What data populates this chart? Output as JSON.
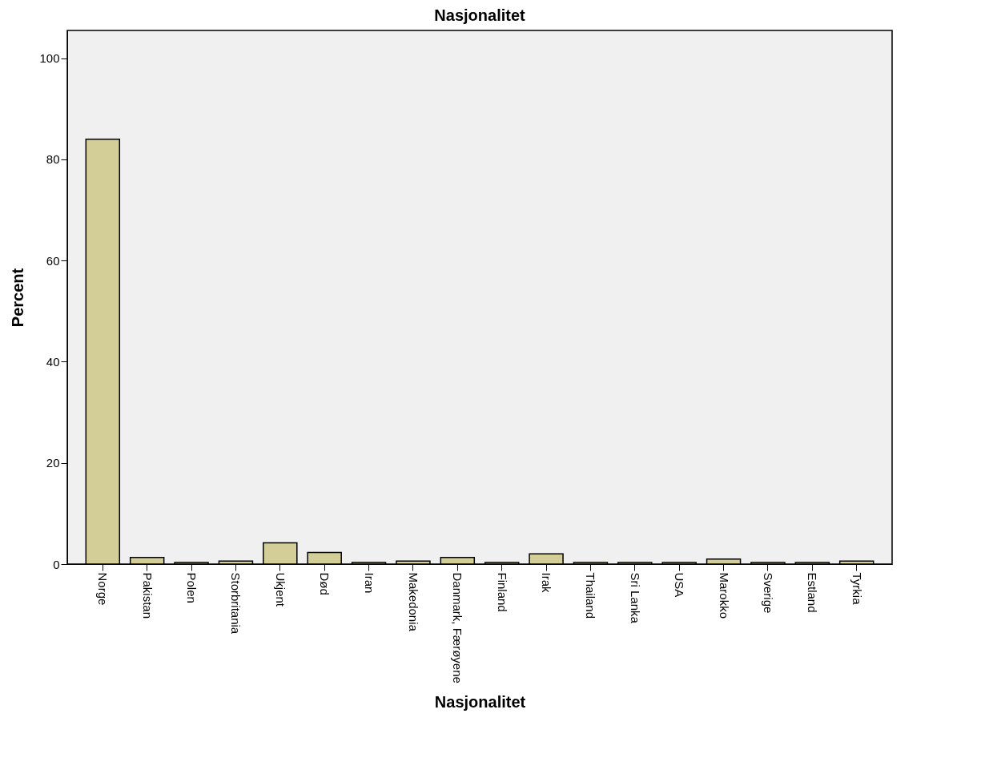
{
  "chart_data": {
    "type": "bar",
    "title": "Nasjonalitet",
    "xlabel": "Nasjonalitet",
    "ylabel": "Percent",
    "categories": [
      "Norge",
      "Pakistan",
      "Polen",
      "Storbritania",
      "Ukjent",
      "Død",
      "Iran",
      "Makedonia",
      "Danmark, Færøyene",
      "Finland",
      "Irak",
      "Thailand",
      "Sri Lanka",
      "USA",
      "Marokko",
      "Sverige",
      "Estland",
      "Tyrkia"
    ],
    "values": [
      84.0,
      1.3,
      0.3,
      0.6,
      4.2,
      2.3,
      0.3,
      0.6,
      1.3,
      0.3,
      2.0,
      0.3,
      0.3,
      0.3,
      1.0,
      0.3,
      0.3,
      0.6
    ],
    "color": "#d3ce97",
    "ylim": [
      0,
      105.5
    ],
    "yticks": [
      0,
      20,
      40,
      60,
      80,
      100
    ],
    "grid": false
  }
}
